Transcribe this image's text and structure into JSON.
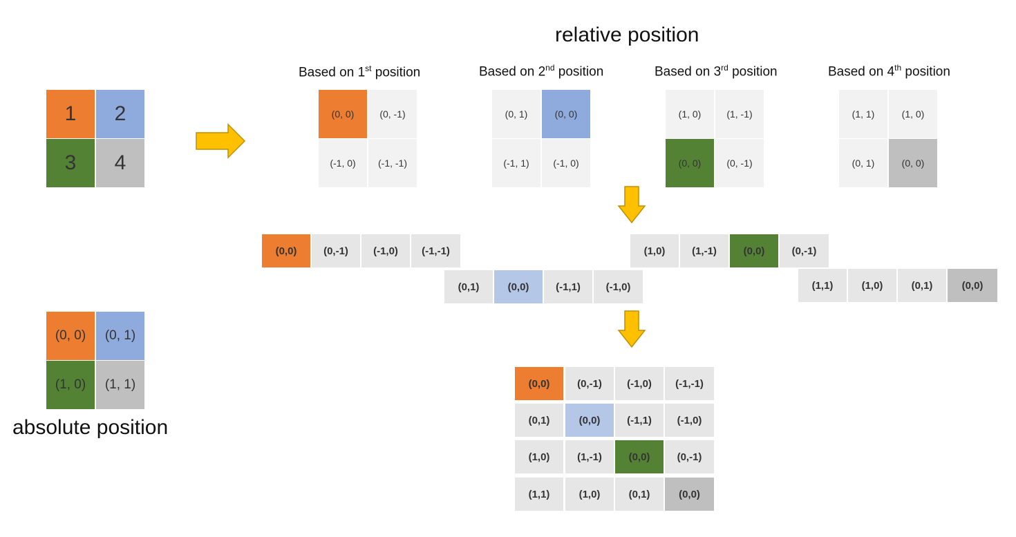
{
  "colors": {
    "orange": "#ed7d31",
    "blue": "#8faadc",
    "light_blue": "#b4c7e7",
    "green": "#548235",
    "gray": "#bfbfbf",
    "cell_light": "#f2f2f2",
    "cell_mid": "#e6e6e6",
    "arrow": "#ffc000",
    "arrow_border": "#bf9000"
  },
  "titles": {
    "relative": "relative position",
    "absolute": "absolute position"
  },
  "bases": [
    {
      "prefix": "Based on 1",
      "sup": "st",
      "suffix": " position"
    },
    {
      "prefix": "Based on 2",
      "sup": "nd",
      "suffix": " position"
    },
    {
      "prefix": "Based on 3",
      "sup": "rd",
      "suffix": " position"
    },
    {
      "prefix": "Based on 4",
      "sup": "th",
      "suffix": " position"
    }
  ],
  "numbered_grid": [
    "1",
    "2",
    "3",
    "4"
  ],
  "absolute_grid": [
    "(0, 0)",
    "(0, 1)",
    "(1, 0)",
    "(1, 1)"
  ],
  "relative_grids": [
    [
      "(0, 0)",
      "(0, -1)",
      "(-1, 0)",
      "(-1, -1)"
    ],
    [
      "(0, 1)",
      "(0, 0)",
      "(-1, 1)",
      "(-1, 0)"
    ],
    [
      "(1, 0)",
      "(1, -1)",
      "(0, 0)",
      "(0, -1)"
    ],
    [
      "(1, 1)",
      "(1, 0)",
      "(0, 1)",
      "(0, 0)"
    ]
  ],
  "flattened_rows": [
    [
      "(0,0)",
      "(0,-1)",
      "(-1,0)",
      "(-1,-1)"
    ],
    [
      "(0,1)",
      "(0,0)",
      "(-1,1)",
      "(-1,0)"
    ],
    [
      "(1,0)",
      "(1,-1)",
      "(0,0)",
      "(0,-1)"
    ],
    [
      "(1,1)",
      "(1,0)",
      "(0,1)",
      "(0,0)"
    ]
  ],
  "final_matrix": [
    [
      "(0,0)",
      "(0,-1)",
      "(-1,0)",
      "(-1,-1)"
    ],
    [
      "(0,1)",
      "(0,0)",
      "(-1,1)",
      "(-1,0)"
    ],
    [
      "(1,0)",
      "(1,-1)",
      "(0,0)",
      "(0,-1)"
    ],
    [
      "(1,1)",
      "(1,0)",
      "(0,1)",
      "(0,0)"
    ]
  ]
}
